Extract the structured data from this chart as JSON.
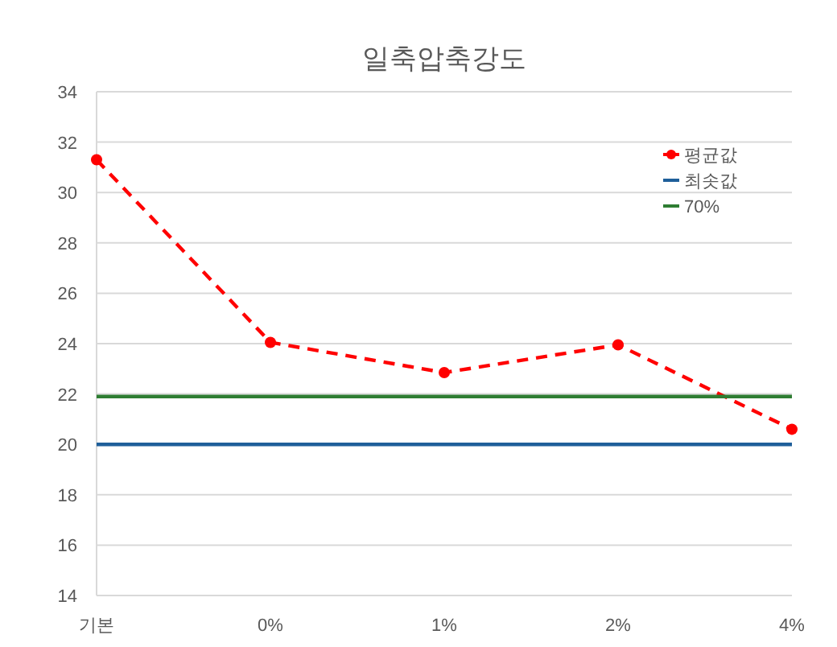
{
  "chart_data": {
    "type": "line",
    "title": "일축압축강도",
    "categories": [
      "기본",
      "0%",
      "1%",
      "2%",
      "4%"
    ],
    "series": [
      {
        "name": "평균값",
        "color": "#ff0000",
        "values": [
          31.3,
          24.05,
          22.85,
          23.95,
          20.6
        ],
        "line_style": "dashed",
        "marker": "circle"
      },
      {
        "name": "최솟값",
        "color": "#1f5f9a",
        "values": [
          20,
          20,
          20,
          20,
          20
        ],
        "line_style": "solid",
        "marker": "none"
      },
      {
        "name": "70%",
        "color": "#2e7d32",
        "values": [
          21.9,
          21.9,
          21.9,
          21.9,
          21.9
        ],
        "line_style": "solid",
        "marker": "none"
      }
    ],
    "ylim": [
      14,
      34
    ],
    "yticks": [
      14,
      16,
      18,
      20,
      22,
      24,
      26,
      28,
      30,
      32,
      34
    ],
    "grid": "y",
    "legend": "top right"
  }
}
